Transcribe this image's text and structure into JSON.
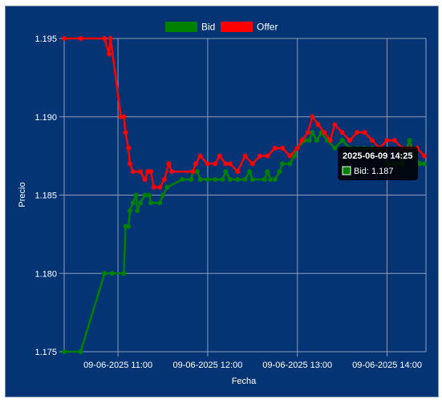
{
  "chart_data": {
    "type": "line",
    "xlabel": "Fecha",
    "ylabel": "Precio",
    "ylim": [
      1.175,
      1.195
    ],
    "yticks": [
      "1.195",
      "1.190",
      "1.185",
      "1.180",
      "1.175"
    ],
    "xticks": [
      "09-06-2025 11:00",
      "09-06-2025 12:00",
      "09-06-2025 13:00",
      "09-06-2025 14:00"
    ],
    "xlim": [
      "2025-06-09 10:24",
      "2025-06-09 14:26"
    ],
    "grid": true,
    "legend_position": "top",
    "series": [
      {
        "name": "Bid",
        "color": "#008000",
        "points": [
          [
            "10:24",
            1.175
          ],
          [
            "10:35",
            1.175
          ],
          [
            "10:51",
            1.18
          ],
          [
            "10:56",
            1.18
          ],
          [
            "11:04",
            1.18
          ],
          [
            "11:05",
            1.183
          ],
          [
            "11:07",
            1.183
          ],
          [
            "11:08",
            1.184
          ],
          [
            "11:10",
            1.1845
          ],
          [
            "11:12",
            1.185
          ],
          [
            "11:13",
            1.184
          ],
          [
            "11:15",
            1.1845
          ],
          [
            "11:18",
            1.185
          ],
          [
            "11:21",
            1.185
          ],
          [
            "11:22",
            1.1845
          ],
          [
            "11:28",
            1.1845
          ],
          [
            "11:30",
            1.185
          ],
          [
            "11:33",
            1.1855
          ],
          [
            "11:43",
            1.186
          ],
          [
            "11:49",
            1.186
          ],
          [
            "11:50",
            1.1865
          ],
          [
            "11:53",
            1.1865
          ],
          [
            "11:55",
            1.186
          ],
          [
            "12:00",
            1.186
          ],
          [
            "12:05",
            1.186
          ],
          [
            "12:10",
            1.186
          ],
          [
            "12:12",
            1.1865
          ],
          [
            "12:15",
            1.186
          ],
          [
            "12:20",
            1.186
          ],
          [
            "12:25",
            1.186
          ],
          [
            "12:28",
            1.1865
          ],
          [
            "12:30",
            1.186
          ],
          [
            "12:38",
            1.186
          ],
          [
            "12:40",
            1.1865
          ],
          [
            "12:42",
            1.186
          ],
          [
            "12:45",
            1.186
          ],
          [
            "12:48",
            1.1865
          ],
          [
            "12:50",
            1.187
          ],
          [
            "12:55",
            1.187
          ],
          [
            "12:58",
            1.1875
          ],
          [
            "13:00",
            1.188
          ],
          [
            "13:05",
            1.1885
          ],
          [
            "13:08",
            1.1885
          ],
          [
            "13:10",
            1.189
          ],
          [
            "13:13",
            1.1885
          ],
          [
            "13:16",
            1.189
          ],
          [
            "13:20",
            1.1885
          ],
          [
            "13:25",
            1.188
          ],
          [
            "13:30",
            1.1885
          ],
          [
            "13:35",
            1.188
          ],
          [
            "13:40",
            1.188
          ],
          [
            "13:45",
            1.188
          ],
          [
            "13:50",
            1.188
          ],
          [
            "13:55",
            1.188
          ],
          [
            "14:00",
            1.187
          ],
          [
            "14:05",
            1.187
          ],
          [
            "14:10",
            1.187
          ],
          [
            "14:15",
            1.1885
          ],
          [
            "14:18",
            1.1875
          ],
          [
            "14:22",
            1.187
          ],
          [
            "14:25",
            1.187
          ]
        ]
      },
      {
        "name": "Offer",
        "color": "#ff0000",
        "points": [
          [
            "10:24",
            1.195
          ],
          [
            "10:35",
            1.195
          ],
          [
            "10:51",
            1.195
          ],
          [
            "10:54",
            1.194
          ],
          [
            "10:55",
            1.195
          ],
          [
            "11:02",
            1.19
          ],
          [
            "11:04",
            1.19
          ],
          [
            "11:05",
            1.189
          ],
          [
            "11:07",
            1.188
          ],
          [
            "11:08",
            1.187
          ],
          [
            "11:10",
            1.1865
          ],
          [
            "11:15",
            1.1865
          ],
          [
            "11:18",
            1.186
          ],
          [
            "11:20",
            1.1865
          ],
          [
            "11:22",
            1.1865
          ],
          [
            "11:24",
            1.1855
          ],
          [
            "11:28",
            1.1855
          ],
          [
            "11:31",
            1.186
          ],
          [
            "11:34",
            1.187
          ],
          [
            "11:36",
            1.1865
          ],
          [
            "11:50",
            1.1865
          ],
          [
            "11:52",
            1.187
          ],
          [
            "11:55",
            1.1875
          ],
          [
            "12:00",
            1.187
          ],
          [
            "12:05",
            1.187
          ],
          [
            "12:08",
            1.1875
          ],
          [
            "12:12",
            1.187
          ],
          [
            "12:15",
            1.187
          ],
          [
            "12:20",
            1.1865
          ],
          [
            "12:25",
            1.1875
          ],
          [
            "12:30",
            1.187
          ],
          [
            "12:35",
            1.1875
          ],
          [
            "12:40",
            1.1875
          ],
          [
            "12:45",
            1.188
          ],
          [
            "12:50",
            1.188
          ],
          [
            "12:55",
            1.1875
          ],
          [
            "13:00",
            1.188
          ],
          [
            "13:03",
            1.1885
          ],
          [
            "13:07",
            1.189
          ],
          [
            "13:10",
            1.19
          ],
          [
            "13:14",
            1.1895
          ],
          [
            "13:18",
            1.189
          ],
          [
            "13:22",
            1.1885
          ],
          [
            "13:25",
            1.1895
          ],
          [
            "13:30",
            1.189
          ],
          [
            "13:35",
            1.1885
          ],
          [
            "13:40",
            1.189
          ],
          [
            "13:45",
            1.189
          ],
          [
            "13:50",
            1.1885
          ],
          [
            "13:55",
            1.188
          ],
          [
            "14:00",
            1.1885
          ],
          [
            "14:05",
            1.1885
          ],
          [
            "14:10",
            1.188
          ],
          [
            "14:15",
            1.188
          ],
          [
            "14:20",
            1.188
          ],
          [
            "14:25",
            1.1875
          ]
        ]
      }
    ],
    "tooltip": {
      "title": "2025-06-09 14:25",
      "body": "Bid: 1.187",
      "series": "Bid"
    }
  }
}
